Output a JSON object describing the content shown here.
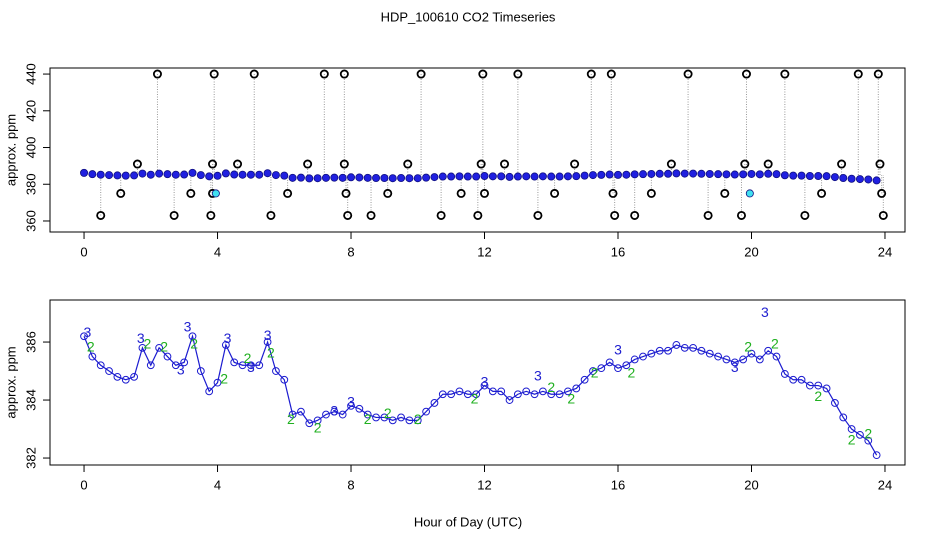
{
  "chart_data": [
    {
      "type": "scatter",
      "title": "HDP_100610  CO2 Timeseries",
      "ylabel": "approx. ppm",
      "xlim": [
        -1.02,
        24.6
      ],
      "ylim": [
        354,
        443.3
      ],
      "xticks": [
        0,
        4,
        8,
        12,
        16,
        20,
        24
      ],
      "yticks": [
        360,
        380,
        400,
        420,
        440
      ],
      "series": [
        {
          "marker": "spike",
          "color": "#9a9a9a",
          "x": [
            0.5,
            1.1,
            1.6,
            2.2,
            2.7,
            3.2,
            3.8,
            3.85,
            3.85,
            3.9,
            4.6,
            5.1,
            5.6,
            6.1,
            6.7,
            7.2,
            7.8,
            7.8,
            7.85,
            7.9,
            8.6,
            9.1,
            9.7,
            10.1,
            10.7,
            11.3,
            11.8,
            11.9,
            11.95,
            12.0,
            12.6,
            13.0,
            13.6,
            14.1,
            14.7,
            15.2,
            15.8,
            15.85,
            15.9,
            16.5,
            17.0,
            17.6,
            18.1,
            18.7,
            19.2,
            19.7,
            19.8,
            19.85,
            20.5,
            21.0,
            21.6,
            22.1,
            22.7,
            23.2,
            23.8,
            23.85,
            23.9,
            23.95
          ],
          "values": [
            363,
            375,
            391,
            440,
            363,
            375,
            363,
            375,
            391,
            440,
            391,
            440,
            363,
            375,
            391,
            440,
            440,
            391,
            375,
            363,
            363,
            375,
            391,
            440,
            363,
            375,
            363,
            391,
            440,
            375,
            391,
            440,
            363,
            375,
            391,
            440,
            440,
            375,
            363,
            363,
            375,
            391,
            440,
            363,
            375,
            363,
            391,
            440,
            391,
            440,
            363,
            375,
            391,
            440,
            440,
            391,
            375,
            363
          ]
        },
        {
          "marker": "filled",
          "color": "#2020e0",
          "x": [
            0,
            0.25,
            0.5,
            0.75,
            1,
            1.25,
            1.5,
            1.75,
            2,
            2.25,
            2.5,
            2.75,
            3,
            3.25,
            3.5,
            3.75,
            4,
            4.25,
            4.5,
            4.75,
            5,
            5.25,
            5.5,
            5.75,
            6,
            6.25,
            6.5,
            6.75,
            7,
            7.25,
            7.5,
            7.75,
            8,
            8.25,
            8.5,
            8.75,
            9,
            9.25,
            9.5,
            9.75,
            10,
            10.25,
            10.5,
            10.75,
            11,
            11.25,
            11.5,
            11.75,
            12,
            12.25,
            12.5,
            12.75,
            13,
            13.25,
            13.5,
            13.75,
            14,
            14.25,
            14.5,
            14.75,
            15,
            15.25,
            15.5,
            15.75,
            16,
            16.25,
            16.5,
            16.75,
            17,
            17.25,
            17.5,
            17.75,
            18,
            18.25,
            18.5,
            18.75,
            19,
            19.25,
            19.5,
            19.75,
            20,
            20.25,
            20.5,
            20.75,
            21,
            21.25,
            21.5,
            21.75,
            22,
            22.25,
            22.5,
            22.75,
            23,
            23.25,
            23.5,
            23.75
          ],
          "values": [
            386.2,
            385.5,
            385.2,
            385,
            384.8,
            384.7,
            384.8,
            385.8,
            385.2,
            385.8,
            385.5,
            385.2,
            385.3,
            386.2,
            385,
            384.3,
            384.6,
            385.9,
            385.3,
            385.2,
            385.2,
            385.2,
            386,
            385,
            384.7,
            383.5,
            383.6,
            383.2,
            383.3,
            383.5,
            383.6,
            383.5,
            383.8,
            383.7,
            383.5,
            383.4,
            383.4,
            383.3,
            383.4,
            383.3,
            383.3,
            383.6,
            383.9,
            384.2,
            384.2,
            384.3,
            384.2,
            384.2,
            384.5,
            384.3,
            384.3,
            384,
            384.2,
            384.3,
            384.2,
            384.3,
            384.2,
            384.2,
            384.3,
            384.4,
            384.7,
            385,
            385.1,
            385.3,
            385.1,
            385.2,
            385.4,
            385.5,
            385.6,
            385.7,
            385.7,
            385.9,
            385.8,
            385.8,
            385.7,
            385.6,
            385.5,
            385.4,
            385.3,
            385.4,
            385.6,
            385.4,
            385.7,
            385.5,
            384.9,
            384.7,
            384.7,
            384.5,
            384.5,
            384.4,
            383.9,
            383.4,
            383,
            382.8,
            382.6,
            382.1
          ]
        },
        {
          "marker": "open",
          "color": "#000000",
          "x": [
            0.5,
            1.1,
            1.6,
            2.2,
            2.7,
            3.2,
            3.8,
            3.85,
            3.85,
            3.9,
            4.6,
            5.1,
            5.6,
            6.1,
            6.7,
            7.2,
            7.8,
            7.8,
            7.85,
            7.9,
            8.6,
            9.1,
            9.7,
            10.1,
            10.7,
            11.3,
            11.8,
            11.9,
            11.95,
            12.0,
            12.6,
            13.0,
            13.6,
            14.1,
            14.7,
            15.2,
            15.8,
            15.85,
            15.9,
            16.5,
            17.0,
            17.6,
            18.1,
            18.7,
            19.2,
            19.7,
            19.8,
            19.85,
            20.5,
            21.0,
            21.6,
            22.1,
            22.7,
            23.2,
            23.8,
            23.85,
            23.9,
            23.95
          ],
          "values": [
            363,
            375,
            391,
            440,
            363,
            375,
            363,
            375,
            391,
            440,
            391,
            440,
            363,
            375,
            391,
            440,
            440,
            391,
            375,
            363,
            363,
            375,
            391,
            440,
            363,
            375,
            363,
            391,
            440,
            375,
            391,
            440,
            363,
            375,
            391,
            440,
            440,
            375,
            363,
            363,
            375,
            391,
            440,
            363,
            375,
            363,
            391,
            440,
            391,
            440,
            363,
            375,
            391,
            440,
            440,
            391,
            375,
            363
          ]
        },
        {
          "marker": "filled",
          "color": "#40e0f0",
          "x": [
            3.95,
            19.95
          ],
          "values": [
            375,
            375
          ]
        }
      ]
    },
    {
      "type": "scatter",
      "ylabel": "approx. ppm",
      "xlabel": "Hour of Day (UTC)",
      "xlim": [
        -1.02,
        24.6
      ],
      "ylim": [
        381.76,
        387.45
      ],
      "xticks": [
        0,
        4,
        8,
        12,
        16,
        20,
        24
      ],
      "yticks": [
        382,
        384,
        386
      ],
      "series": [
        {
          "marker": "line-open",
          "color": "#1c1cd0",
          "x": [
            0,
            0.25,
            0.5,
            0.75,
            1,
            1.25,
            1.5,
            1.75,
            2,
            2.25,
            2.5,
            2.75,
            3,
            3.25,
            3.5,
            3.75,
            4,
            4.25,
            4.5,
            4.75,
            5,
            5.25,
            5.5,
            5.75,
            6,
            6.25,
            6.5,
            6.75,
            7,
            7.25,
            7.5,
            7.75,
            8,
            8.25,
            8.5,
            8.75,
            9,
            9.25,
            9.5,
            9.75,
            10,
            10.25,
            10.5,
            10.75,
            11,
            11.25,
            11.5,
            11.75,
            12,
            12.25,
            12.5,
            12.75,
            13,
            13.25,
            13.5,
            13.75,
            14,
            14.25,
            14.5,
            14.75,
            15,
            15.25,
            15.5,
            15.75,
            16,
            16.25,
            16.5,
            16.75,
            17,
            17.25,
            17.5,
            17.75,
            18,
            18.25,
            18.5,
            18.75,
            19,
            19.25,
            19.5,
            19.75,
            20,
            20.25,
            20.5,
            20.75,
            21,
            21.25,
            21.5,
            21.75,
            22,
            22.25,
            22.5,
            22.75,
            23,
            23.25,
            23.5,
            23.75
          ],
          "values": [
            386.2,
            385.5,
            385.2,
            385,
            384.8,
            384.7,
            384.8,
            385.8,
            385.2,
            385.8,
            385.5,
            385.2,
            385.3,
            386.2,
            385,
            384.3,
            384.6,
            385.9,
            385.3,
            385.2,
            385.2,
            385.2,
            386,
            385,
            384.7,
            383.5,
            383.6,
            383.2,
            383.3,
            383.5,
            383.6,
            383.5,
            383.8,
            383.7,
            383.5,
            383.4,
            383.4,
            383.3,
            383.4,
            383.3,
            383.3,
            383.6,
            383.9,
            384.2,
            384.2,
            384.3,
            384.2,
            384.2,
            384.5,
            384.3,
            384.3,
            384,
            384.2,
            384.3,
            384.2,
            384.3,
            384.2,
            384.2,
            384.3,
            384.4,
            384.7,
            385,
            385.1,
            385.3,
            385.1,
            385.2,
            385.4,
            385.5,
            385.6,
            385.7,
            385.7,
            385.9,
            385.8,
            385.8,
            385.7,
            385.6,
            385.5,
            385.4,
            385.3,
            385.4,
            385.6,
            385.4,
            385.7,
            385.5,
            384.9,
            384.7,
            384.7,
            384.5,
            384.5,
            384.4,
            383.9,
            383.4,
            383,
            382.8,
            382.6,
            382.1
          ]
        },
        {
          "marker": "text",
          "label": "3",
          "color": "#2020d0",
          "x": [
            0.1,
            1.7,
            2.9,
            3.1,
            4.3,
            5.0,
            5.5,
            7.5,
            8.0,
            12.0,
            13.6,
            16.0,
            19.5,
            20.4
          ],
          "values": [
            386.3,
            386.1,
            385.0,
            386.5,
            386.1,
            385.1,
            386.2,
            383.6,
            383.9,
            384.6,
            384.8,
            385.7,
            385.1,
            387.0
          ]
        },
        {
          "marker": "text",
          "label": "2",
          "color": "#20b020",
          "x": [
            0.2,
            1.9,
            2.4,
            3.3,
            4.2,
            4.9,
            5.6,
            6.2,
            7.0,
            8.5,
            9.1,
            10.0,
            11.7,
            14.0,
            14.6,
            15.3,
            16.4,
            19.9,
            20.7,
            22.0,
            23.0,
            23.5
          ],
          "values": [
            385.8,
            385.9,
            385.8,
            385.9,
            384.7,
            385.4,
            385.6,
            383.3,
            383.0,
            383.3,
            383.5,
            383.3,
            384.0,
            384.4,
            384.0,
            384.9,
            384.9,
            385.8,
            385.9,
            384.1,
            382.6,
            382.8
          ]
        }
      ]
    }
  ]
}
